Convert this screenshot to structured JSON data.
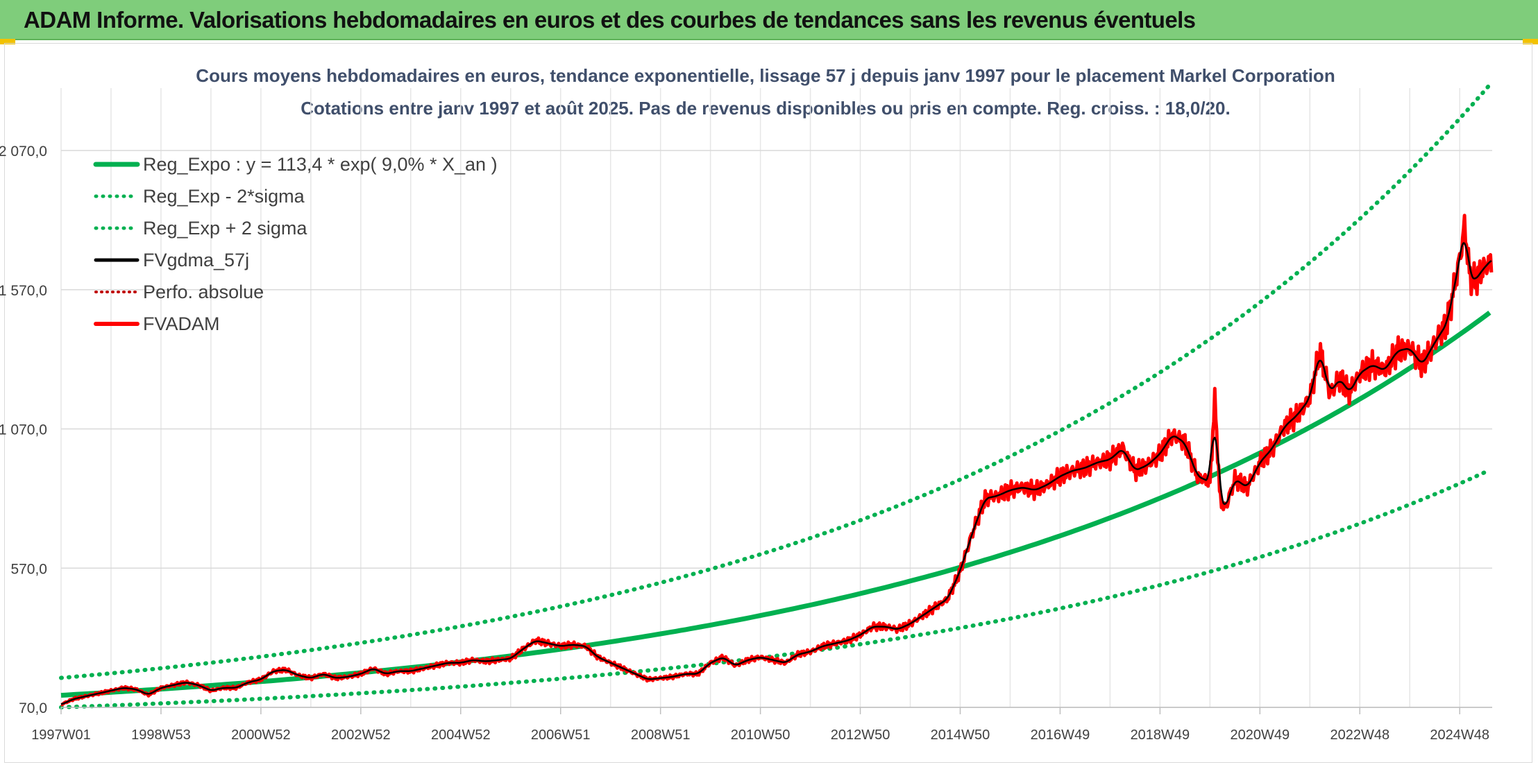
{
  "header": {
    "title": "ADAM Informe. Valorisations hebdomadaires en euros et des courbes de tendances sans les revenus éventuels"
  },
  "chart_data": {
    "type": "line",
    "title": "Cours moyens hebdomadaires en euros, tendance exponentielle, lissage 57 j depuis janv 1997 pour le placement Markel Corporation",
    "subtitle": "Cotations entre janv 1997 et août 2025. Pas de revenus disponibles ou pris en compte. Reg. croiss. : 18,0/20.",
    "xlabel": "",
    "ylabel": "",
    "x_tick_labels": [
      "1997W01",
      "1998W53",
      "2000W52",
      "2002W52",
      "2004W52",
      "2006W51",
      "2008W51",
      "2010W50",
      "2012W50",
      "2014W50",
      "2016W49",
      "2018W49",
      "2020W49",
      "2022W48",
      "2024W48"
    ],
    "x_tick_years": [
      1997.0,
      1999.0,
      2001.0,
      2003.0,
      2005.0,
      2007.0,
      2009.0,
      2011.0,
      2013.0,
      2015.0,
      2017.0,
      2019.0,
      2021.0,
      2023.0,
      2025.0
    ],
    "xlim": [
      1997.0,
      2025.65
    ],
    "y_tick_labels": [
      "70,0",
      "570,0",
      "1 070,0",
      "1 570,0",
      "2 070,0"
    ],
    "y_ticks": [
      70,
      570,
      1070,
      1570,
      2070
    ],
    "ylim": [
      70,
      2070
    ],
    "grid": true,
    "legend_position": "top-left",
    "colors": {
      "reg_expo": "#00b050",
      "reg_bands": "#00b050",
      "smooth": "#000000",
      "perfo": "#c00000",
      "fvadam": "#ff0000"
    },
    "series": [
      {
        "name": "Reg_Expo : y = 113,4 * exp( 9,0% *  X_an )",
        "style": "solid",
        "color": "#00b050",
        "model": {
          "a": 113.4,
          "rate": 0.09,
          "x0": 1997.0
        }
      },
      {
        "name": "Reg_Exp - 2*sigma",
        "style": "dotted",
        "color": "#00b050",
        "model": {
          "a": 113.4,
          "rate": 0.09,
          "x0": 1997.0,
          "factor": 0.62
        }
      },
      {
        "name": "Reg_Exp + 2 sigma",
        "style": "dotted",
        "color": "#00b050",
        "model": {
          "a": 113.4,
          "rate": 0.09,
          "x0": 1997.0,
          "factor": 1.55
        }
      },
      {
        "name": "FVgdma_57j",
        "style": "solid",
        "color": "#000000"
      },
      {
        "name": "Perfo. absolue",
        "style": "dotted",
        "color": "#c00000"
      },
      {
        "name": "FVADAM",
        "style": "solid",
        "color": "#ff0000",
        "x": [
          1997.0,
          1997.25,
          1997.5,
          1997.75,
          1998.0,
          1998.25,
          1998.5,
          1998.75,
          1999.0,
          1999.25,
          1999.5,
          1999.75,
          2000.0,
          2000.25,
          2000.5,
          2000.75,
          2001.0,
          2001.25,
          2001.5,
          2001.75,
          2002.0,
          2002.25,
          2002.5,
          2002.75,
          2003.0,
          2003.25,
          2003.5,
          2003.75,
          2004.0,
          2004.25,
          2004.5,
          2004.75,
          2005.0,
          2005.25,
          2005.5,
          2005.75,
          2006.0,
          2006.25,
          2006.5,
          2006.75,
          2007.0,
          2007.25,
          2007.5,
          2007.75,
          2008.0,
          2008.25,
          2008.5,
          2008.75,
          2009.0,
          2009.25,
          2009.5,
          2009.75,
          2010.0,
          2010.25,
          2010.5,
          2010.75,
          2011.0,
          2011.25,
          2011.5,
          2011.75,
          2012.0,
          2012.25,
          2012.5,
          2012.75,
          2013.0,
          2013.25,
          2013.5,
          2013.75,
          2014.0,
          2014.25,
          2014.5,
          2014.75,
          2015.0,
          2015.25,
          2015.5,
          2015.75,
          2016.0,
          2016.25,
          2016.5,
          2016.75,
          2017.0,
          2017.25,
          2017.5,
          2017.75,
          2018.0,
          2018.25,
          2018.5,
          2018.75,
          2019.0,
          2019.25,
          2019.5,
          2019.75,
          2020.0,
          2020.1,
          2020.2,
          2020.3,
          2020.5,
          2020.75,
          2021.0,
          2021.25,
          2021.5,
          2021.75,
          2022.0,
          2022.2,
          2022.4,
          2022.6,
          2022.8,
          2023.0,
          2023.25,
          2023.5,
          2023.75,
          2024.0,
          2024.25,
          2024.5,
          2024.75,
          2025.0,
          2025.1,
          2025.2,
          2025.3,
          2025.45,
          2025.65
        ],
        "values": [
          80,
          100,
          110,
          120,
          130,
          140,
          135,
          115,
          140,
          150,
          160,
          150,
          130,
          140,
          140,
          160,
          170,
          200,
          205,
          185,
          175,
          190,
          175,
          180,
          190,
          210,
          190,
          200,
          200,
          210,
          220,
          230,
          230,
          240,
          235,
          240,
          245,
          280,
          310,
          300,
          290,
          295,
          290,
          250,
          230,
          210,
          190,
          170,
          175,
          180,
          190,
          190,
          230,
          250,
          220,
          240,
          250,
          240,
          230,
          260,
          270,
          290,
          300,
          310,
          330,
          360,
          360,
          350,
          370,
          400,
          430,
          460,
          560,
          700,
          820,
          830,
          850,
          860,
          850,
          870,
          900,
          920,
          930,
          950,
          960,
          1000,
          920,
          940,
          980,
          1050,
          1020,
          900,
          880,
          1180,
          820,
          780,
          890,
          860,
          950,
          1000,
          1080,
          1120,
          1180,
          1350,
          1200,
          1250,
          1200,
          1270,
          1300,
          1280,
          1350,
          1360,
          1300,
          1380,
          1450,
          1680,
          1800,
          1620,
          1600,
          1640,
          1680
        ]
      }
    ]
  }
}
